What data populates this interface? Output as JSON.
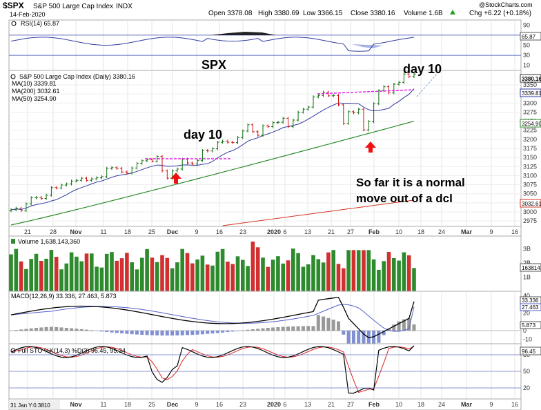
{
  "header": {
    "symbol": "$SPX",
    "name": "S&P 500 Large Cap Index",
    "exchange": "INDX",
    "date": "14-Feb-2020",
    "open": "Open 3378.08",
    "high": "High 3380.69",
    "low": "Low 3366.15",
    "close": "Close 3380.16",
    "volume": "Volume 1.6B",
    "chg": "Chg +6.22 (+0.18%)",
    "chg_arrow": "up-triangle-icon",
    "brand": "@StockCharts.com"
  },
  "colors": {
    "price_up": "#0b6b0b",
    "price_down": "#d01010",
    "ma10": "#2e3a9e",
    "ma200": "#d03020",
    "ma50": "#2d8a2d",
    "annotation": "#9b30d0",
    "callout": "#2020d0",
    "arrow": "#ee1111"
  },
  "rsi_panel": {
    "label": "RSI(14) 65.87",
    "current_tag": "65.87",
    "ticks": [
      "90",
      "70",
      "50",
      "30",
      "10"
    ]
  },
  "price_panel": {
    "title": "S&P 500 Large Cap Index (Daily) 3380.16",
    "legend": [
      {
        "label": "MA(10) 3339.81",
        "color": "#2e3a9e"
      },
      {
        "label": "MA(200) 3032.61",
        "color": "#d03020"
      },
      {
        "label": "MA(50) 3254.90",
        "color": "#2d8a2d"
      }
    ],
    "yticks": [
      "3350",
      "3325",
      "3300",
      "3275",
      "3250",
      "3225",
      "3200",
      "3175",
      "3150",
      "3125",
      "3100",
      "3075",
      "3050",
      "3025",
      "3000",
      "2975"
    ],
    "tags": [
      "3380.16",
      "3339.81",
      "3254.90",
      "3032.61"
    ],
    "annotations": {
      "spx": "SPX",
      "day10_a": "day 10",
      "day10_b": "day 10",
      "callout_line1": "So far it is a normal",
      "callout_line2": "move out of a dcl",
      "arrow_icon": "up-arrow-icon"
    }
  },
  "volume_panel": {
    "label": "Volume 1,638,143,360",
    "ticks": [
      "3B",
      "2B",
      "1B"
    ],
    "current_tag": "1638143360"
  },
  "macd_panel": {
    "label": "MACD(12,26,9) 33.336, 27.463, 5.873",
    "ticks": [
      "40",
      "20",
      "0",
      "-10"
    ],
    "tags": [
      "33.336",
      "27.463",
      "5.873"
    ]
  },
  "sto_panel": {
    "label": "Full STO %K(14,3) %D(3) 96.45, 95.34",
    "ticks": [
      "80",
      "50",
      "20"
    ],
    "current_tag": "96.45"
  },
  "x_axis": {
    "labels": [
      "21",
      "28",
      "Nov",
      "11",
      "18",
      "25",
      "Dec",
      "9",
      "16",
      "23",
      "2020",
      "6",
      "13",
      "21",
      "27",
      "Feb",
      "10",
      "18",
      "24",
      "Mar",
      "9",
      "16"
    ],
    "footer_label": "31 Jan Y:0.3810"
  },
  "chart_data": {
    "type": "candlestick",
    "title": "S&P 500 Large Cap Index (Daily) 3380.16",
    "xlabel": "",
    "ylabel": "",
    "ylim": [
      2960,
      3390
    ],
    "date_range": [
      "2019-10-21",
      "2020-02-14"
    ],
    "close_series": {
      "name": "S&P 500 Large Cap Index",
      "values": [
        3006,
        3010,
        3004,
        3022,
        3039,
        3040,
        3037,
        3046,
        3067,
        3066,
        3074,
        3077,
        3085,
        3087,
        3093,
        3087,
        3091,
        3094,
        3097,
        3120,
        3122,
        3120,
        3110,
        3107,
        3121,
        3134,
        3141,
        3144,
        3140,
        3153,
        3113,
        3093,
        3113,
        3118,
        3145,
        3135,
        3132,
        3142,
        3169,
        3168,
        3174,
        3192,
        3195,
        3192,
        3191,
        3205,
        3223,
        3240,
        3221,
        3211,
        3237,
        3235,
        3246,
        3247,
        3258,
        3235,
        3253,
        3275,
        3283,
        3289,
        3317,
        3321,
        3330,
        3320,
        3321,
        3295,
        3244,
        3276,
        3273,
        3283,
        3226,
        3249,
        3298,
        3334,
        3345,
        3328,
        3352,
        3357,
        3380,
        3373,
        3380
      ]
    },
    "ma10": {
      "name": "MA(10)",
      "last": 3339.81
    },
    "ma50": {
      "name": "MA(50)",
      "last": 3254.9
    },
    "ma200": {
      "name": "MA(200)",
      "last": 3032.61
    },
    "rsi": {
      "name": "RSI(14)",
      "last": 65.87,
      "ylim": [
        0,
        100
      ]
    },
    "volume": {
      "name": "Volume",
      "last": 1638143360,
      "ylim_billions": [
        0,
        3.5
      ]
    },
    "macd": {
      "name": "MACD(12,26,9)",
      "macd": 33.336,
      "signal": 27.463,
      "histogram": 5.873,
      "ylim": [
        -15,
        45
      ]
    },
    "full_sto": {
      "name": "Full STO %K(14,3) %D(3)",
      "k": 96.45,
      "d": 95.34,
      "ylim": [
        0,
        100
      ]
    }
  }
}
